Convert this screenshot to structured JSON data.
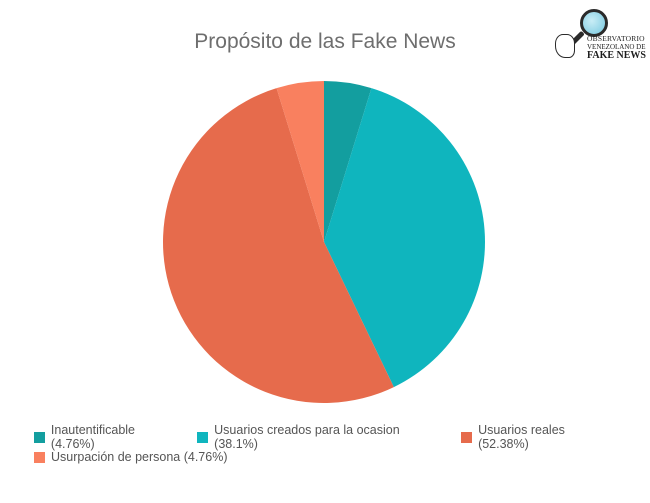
{
  "title": "Propósito de las Fake News",
  "logo": {
    "line1": "OBSERVATORIO",
    "line2": "VENEZOLANO DE",
    "line3": "FAKE NEWS"
  },
  "chart_data": {
    "type": "pie",
    "title": "Propósito de las Fake News",
    "categories": [
      "Inautentificable",
      "Usuarios creados para la ocasion",
      "Usuarios reales",
      "Usurpación de persona"
    ],
    "values": [
      4.76,
      38.1,
      52.38,
      4.76
    ],
    "legend_labels": [
      "Inautentificable (4.76%)",
      "Usuarios creados para la ocasion (38.1%)",
      "Usuarios reales (52.38%)",
      "Usurpación de persona (4.76%)"
    ],
    "colors": [
      "#139e9f",
      "#0fb5be",
      "#e66b4c",
      "#f9805f"
    ],
    "legend_position": "bottom"
  }
}
